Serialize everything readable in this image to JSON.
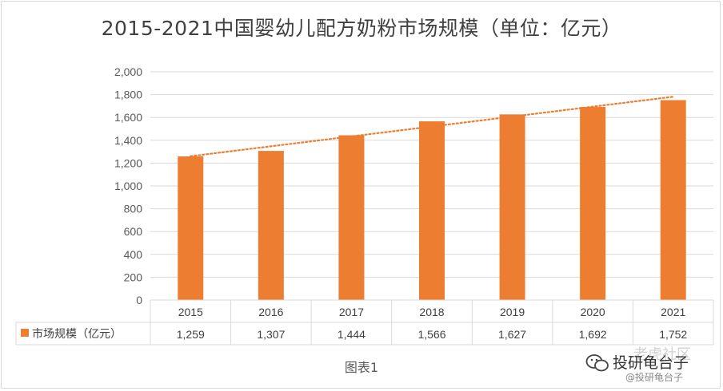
{
  "chart_data": {
    "type": "bar",
    "title": "2015-2021中国婴幼儿配方奶粉市场规模（单位：亿元）",
    "categories": [
      "2015",
      "2016",
      "2017",
      "2018",
      "2019",
      "2020",
      "2021"
    ],
    "series": [
      {
        "name": "市场规模（亿元）",
        "values": [
          1259,
          1307,
          1444,
          1566,
          1627,
          1692,
          1752
        ],
        "color": "#ed7d31"
      }
    ],
    "trendline": {
      "type": "linear",
      "style": "dotted",
      "color": "#ed7d31"
    },
    "yticks": [
      "0",
      "200",
      "400",
      "600",
      "800",
      "1,000",
      "1,200",
      "1,400",
      "1,600",
      "1,800",
      "2,000"
    ],
    "ylim": [
      0,
      2000
    ],
    "data_table": {
      "row_label": "市场规模（亿元）",
      "cells": [
        "1,259",
        "1,307",
        "1,444",
        "1,566",
        "1,627",
        "1,692",
        "1,752"
      ]
    },
    "grid": true,
    "legend": "data-table-row"
  },
  "caption": "图表1",
  "watermark": {
    "main": "投研龟台子",
    "sub": "@投研龟台子",
    "ghost": "老虎社区"
  },
  "colors": {
    "bar": "#ed7d31",
    "grid": "#d9d9d9",
    "axis_text": "#595959"
  }
}
